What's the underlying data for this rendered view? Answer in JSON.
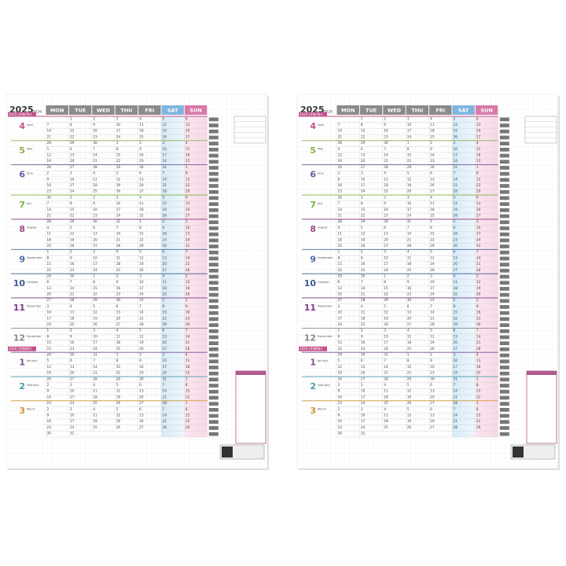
{
  "calendar": {
    "year": "2025",
    "year_end": "-2026",
    "days": [
      "MON",
      "TUE",
      "WED",
      "THU",
      "FRI",
      "SAT",
      "SUN"
    ],
    "day_colors": [
      "#8a8a8a",
      "#8a8a8a",
      "#8a8a8a",
      "#8a8a8a",
      "#8a8a8a",
      "#7fb5de",
      "#d77aa8"
    ],
    "year_tags": [
      {
        "label": "2025 [令和7年]",
        "week": 0
      },
      {
        "label": "2026 [令和8年]",
        "week": 39
      }
    ],
    "months": [
      {
        "num": "4",
        "name": "April",
        "week": 0,
        "color": "#c2508a"
      },
      {
        "num": "5",
        "name": "May",
        "week": 4,
        "color": "#8ab04a"
      },
      {
        "num": "6",
        "name": "June",
        "week": 8,
        "color": "#6a5aa0"
      },
      {
        "num": "7",
        "name": "July",
        "week": 13,
        "color": "#7ab040"
      },
      {
        "num": "8",
        "name": "August",
        "week": 17,
        "color": "#9a4a8a"
      },
      {
        "num": "9",
        "name": "September",
        "week": 22,
        "color": "#4a6aa8"
      },
      {
        "num": "10",
        "name": "October",
        "week": 26,
        "color": "#3a5a98"
      },
      {
        "num": "11",
        "name": "November",
        "week": 30,
        "color": "#7a3a8a"
      },
      {
        "num": "12",
        "name": "December",
        "week": 35,
        "color": "#8a8a8a"
      },
      {
        "num": "1",
        "name": "January",
        "week": 39,
        "color": "#7a4aa0"
      },
      {
        "num": "2",
        "name": "February",
        "week": 43,
        "color": "#4a9aa8"
      },
      {
        "num": "3",
        "name": "March",
        "week": 47,
        "color": "#d0903a"
      }
    ],
    "weeks": [
      [
        null,
        1,
        2,
        3,
        4,
        5,
        6
      ],
      [
        7,
        8,
        9,
        10,
        11,
        12,
        13
      ],
      [
        14,
        15,
        16,
        17,
        18,
        19,
        20
      ],
      [
        21,
        22,
        23,
        24,
        25,
        26,
        27
      ],
      [
        28,
        29,
        30,
        1,
        2,
        3,
        4
      ],
      [
        5,
        6,
        7,
        8,
        9,
        10,
        11
      ],
      [
        12,
        13,
        14,
        15,
        16,
        17,
        18
      ],
      [
        19,
        20,
        21,
        22,
        23,
        24,
        25
      ],
      [
        26,
        27,
        28,
        29,
        30,
        31,
        1
      ],
      [
        2,
        3,
        4,
        5,
        6,
        7,
        8
      ],
      [
        9,
        10,
        11,
        12,
        13,
        14,
        15
      ],
      [
        16,
        17,
        18,
        19,
        20,
        21,
        22
      ],
      [
        23,
        24,
        25,
        26,
        27,
        28,
        29
      ],
      [
        30,
        1,
        2,
        3,
        4,
        5,
        6
      ],
      [
        7,
        8,
        9,
        10,
        11,
        12,
        13
      ],
      [
        14,
        15,
        16,
        17,
        18,
        19,
        20
      ],
      [
        21,
        22,
        23,
        24,
        25,
        26,
        27
      ],
      [
        28,
        29,
        30,
        31,
        1,
        2,
        3
      ],
      [
        4,
        5,
        6,
        7,
        8,
        9,
        10
      ],
      [
        11,
        12,
        13,
        14,
        15,
        16,
        17
      ],
      [
        18,
        19,
        20,
        21,
        22,
        23,
        24
      ],
      [
        25,
        26,
        27,
        28,
        29,
        30,
        31
      ],
      [
        1,
        2,
        3,
        4,
        5,
        6,
        7
      ],
      [
        8,
        9,
        10,
        11,
        12,
        13,
        14
      ],
      [
        15,
        16,
        17,
        18,
        19,
        20,
        21
      ],
      [
        22,
        23,
        24,
        25,
        26,
        27,
        28
      ],
      [
        29,
        30,
        1,
        2,
        3,
        4,
        5
      ],
      [
        6,
        7,
        8,
        9,
        10,
        11,
        12
      ],
      [
        13,
        14,
        15,
        16,
        17,
        18,
        19
      ],
      [
        20,
        21,
        22,
        23,
        24,
        25,
        26
      ],
      [
        27,
        28,
        29,
        30,
        31,
        1,
        2
      ],
      [
        3,
        4,
        5,
        6,
        7,
        8,
        9
      ],
      [
        10,
        11,
        12,
        13,
        14,
        15,
        16
      ],
      [
        17,
        18,
        19,
        20,
        21,
        22,
        23
      ],
      [
        24,
        25,
        26,
        27,
        28,
        29,
        30
      ],
      [
        1,
        2,
        3,
        4,
        5,
        6,
        7
      ],
      [
        8,
        9,
        10,
        11,
        12,
        13,
        14
      ],
      [
        15,
        16,
        17,
        18,
        19,
        20,
        21
      ],
      [
        22,
        23,
        24,
        25,
        26,
        27,
        28
      ],
      [
        29,
        30,
        31,
        1,
        2,
        3,
        4
      ],
      [
        5,
        6,
        7,
        8,
        9,
        10,
        11
      ],
      [
        12,
        13,
        14,
        15,
        16,
        17,
        18
      ],
      [
        19,
        20,
        21,
        22,
        23,
        24,
        25
      ],
      [
        26,
        27,
        28,
        29,
        30,
        31,
        1
      ],
      [
        2,
        3,
        4,
        5,
        6,
        7,
        8
      ],
      [
        9,
        10,
        11,
        12,
        13,
        14,
        15
      ],
      [
        16,
        17,
        18,
        19,
        20,
        21,
        22
      ],
      [
        23,
        24,
        25,
        26,
        27,
        28,
        1
      ],
      [
        2,
        3,
        4,
        5,
        6,
        7,
        8
      ],
      [
        9,
        10,
        11,
        12,
        13,
        14,
        15
      ],
      [
        16,
        17,
        18,
        19,
        20,
        21,
        22
      ],
      [
        23,
        24,
        25,
        26,
        27,
        28,
        29
      ],
      [
        30,
        31,
        null,
        null,
        null,
        null,
        null
      ]
    ]
  }
}
